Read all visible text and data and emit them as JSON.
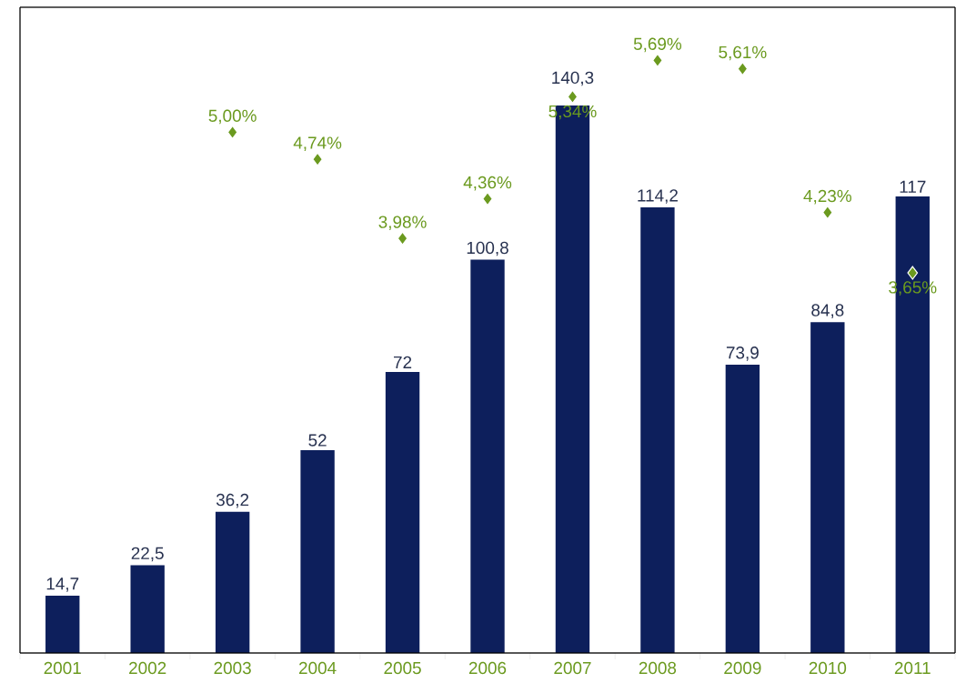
{
  "chart_data": {
    "type": "bar",
    "categories": [
      "2001",
      "2002",
      "2003",
      "2004",
      "2005",
      "2006",
      "2007",
      "2008",
      "2009",
      "2010",
      "2011"
    ],
    "ylim": [
      0,
      165.5
    ],
    "y2lim": [
      0,
      6.2
    ],
    "tick_labels": "x",
    "series": [
      {
        "color": "#0d1f5c",
        "values": [
          14.7,
          22.5,
          36.2,
          52,
          72,
          100.8,
          140.3,
          114.2,
          73.9,
          84.8,
          117
        ],
        "value_labels": [
          "14,7",
          "22,5",
          "36,2",
          "52",
          "72",
          "100,8",
          "140,3",
          "114,2",
          "73,9",
          "84,8",
          "117"
        ]
      },
      {
        "type": "scatter",
        "axis": "y2",
        "marker": "diamond",
        "color": "#6b9a1f",
        "values": [
          null,
          null,
          5.0,
          4.74,
          3.98,
          4.36,
          5.34,
          5.69,
          5.61,
          4.23,
          3.65
        ],
        "value_labels": [
          null,
          null,
          "5,00%",
          "4,74%",
          "3,98%",
          "4,36%",
          "5,34%",
          "5,69%",
          "5,61%",
          "4,23%",
          "3,65%"
        ]
      }
    ]
  }
}
